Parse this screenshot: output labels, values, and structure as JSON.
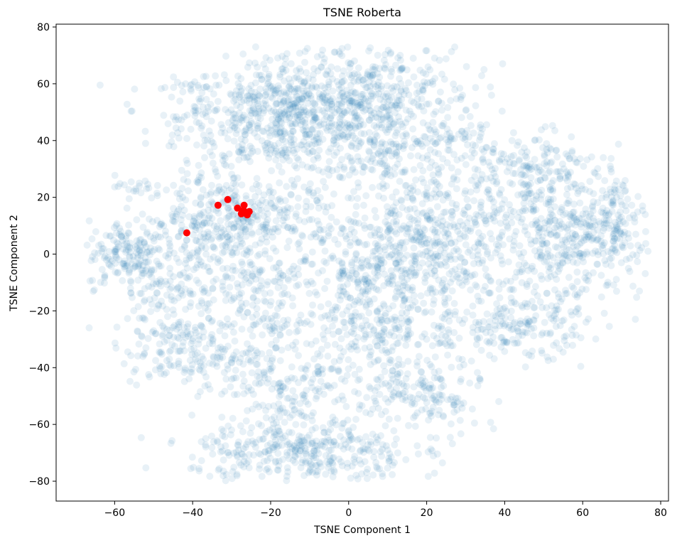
{
  "chart_data": {
    "type": "scatter",
    "title": "TSNE Roberta",
    "xlabel": "TSNE Component 1",
    "ylabel": "TSNE Component 2",
    "xlim": [
      -75,
      82
    ],
    "ylim": [
      -87,
      81
    ],
    "xticks": [
      -60,
      -40,
      -20,
      0,
      20,
      40,
      60,
      80
    ],
    "yticks": [
      -80,
      -60,
      -40,
      -20,
      0,
      20,
      40,
      60,
      80
    ],
    "grid": false,
    "colors": {
      "background": "#e05a87",
      "highlight": "#ff0000",
      "highlight_edge": "#ff0000"
    },
    "highlight_points": {
      "x": [
        -41.5,
        -33.5,
        -31,
        -28.5,
        -27.5,
        -26.8,
        -26,
        -27,
        -25.5
      ],
      "y": [
        7.5,
        17.2,
        19.2,
        16.2,
        14.2,
        17.2,
        13.8,
        15.5,
        15
      ]
    },
    "background_clusters": [
      {
        "cx": -15,
        "cy": 48,
        "sx": 14,
        "sy": 10,
        "n": 700
      },
      {
        "cx": 8,
        "cy": 55,
        "sx": 12,
        "sy": 10,
        "n": 350
      },
      {
        "cx": -38,
        "cy": 52,
        "sx": 5,
        "sy": 5,
        "n": 40
      },
      {
        "cx": 12,
        "cy": 32,
        "sx": 9,
        "sy": 7,
        "n": 150
      },
      {
        "cx": -28,
        "cy": 12,
        "sx": 9,
        "sy": 8,
        "n": 260
      },
      {
        "cx": -42,
        "cy": 10,
        "sx": 6,
        "sy": 9,
        "n": 100
      },
      {
        "cx": -10,
        "cy": 12,
        "sx": 8,
        "sy": 8,
        "n": 90
      },
      {
        "cx": -57,
        "cy": 0,
        "sx": 5,
        "sy": 6,
        "n": 140
      },
      {
        "cx": -47,
        "cy": -10,
        "sx": 7,
        "sy": 12,
        "n": 150
      },
      {
        "cx": -40,
        "cy": -35,
        "sx": 8,
        "sy": 6,
        "n": 170
      },
      {
        "cx": -25,
        "cy": -15,
        "sx": 9,
        "sy": 10,
        "n": 190
      },
      {
        "cx": -55,
        "cy": 24,
        "sx": 2.5,
        "sy": 2,
        "n": 18
      },
      {
        "cx": -15,
        "cy": -45,
        "sx": 8,
        "sy": 9,
        "n": 160
      },
      {
        "cx": -12,
        "cy": -70,
        "sx": 14,
        "sy": 6,
        "n": 380
      },
      {
        "cx": 5,
        "cy": -25,
        "sx": 9,
        "sy": 11,
        "n": 260
      },
      {
        "cx": 5,
        "cy": -5,
        "sx": 7,
        "sy": 7,
        "n": 150
      },
      {
        "cx": 18,
        "cy": -50,
        "sx": 8,
        "sy": 8,
        "n": 170
      },
      {
        "cx": 25,
        "cy": -10,
        "sx": 8,
        "sy": 12,
        "n": 210
      },
      {
        "cx": 22,
        "cy": 10,
        "sx": 9,
        "sy": 8,
        "n": 230
      },
      {
        "cx": 45,
        "cy": 28,
        "sx": 10,
        "sy": 8,
        "n": 220
      },
      {
        "cx": 55,
        "cy": 5,
        "sx": 10,
        "sy": 10,
        "n": 340
      },
      {
        "cx": 68,
        "cy": 10,
        "sx": 4,
        "sy": 9,
        "n": 120
      },
      {
        "cx": 45,
        "cy": -25,
        "sx": 8,
        "sy": 6,
        "n": 170
      },
      {
        "cx": 30,
        "cy": 40,
        "sx": 4,
        "sy": 3,
        "n": 25
      }
    ]
  }
}
